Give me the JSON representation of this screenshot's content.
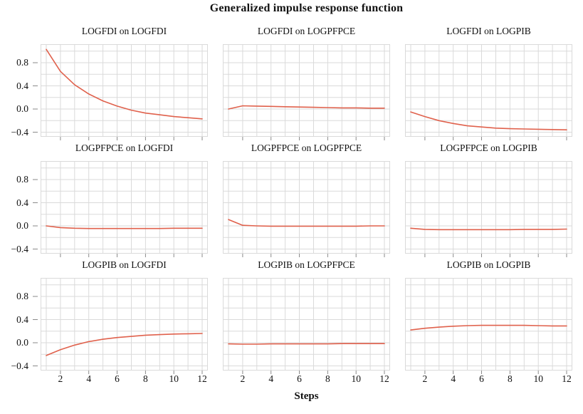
{
  "title": "Generalized impulse response function",
  "xlabel": "Steps",
  "y_tick_labels": [
    "0.8",
    "0.4",
    "0.0",
    "−0.4"
  ],
  "y_tick_values": [
    0.8,
    0.4,
    0.0,
    -0.4
  ],
  "x_tick_labels": [
    "2",
    "4",
    "6",
    "8",
    "10",
    "12"
  ],
  "x_tick_values": [
    2,
    4,
    6,
    8,
    10,
    12
  ],
  "colors": {
    "line": "#e0614c",
    "grid": "#dadada",
    "tick": "#8a8a8a",
    "text": "#111111",
    "background": "#ffffff"
  },
  "chart_data": {
    "type": "line",
    "layout": "3x3 small multiples, shared axes",
    "title": "Generalized impulse response function",
    "xlabel": "Steps",
    "x": [
      1,
      2,
      3,
      4,
      5,
      6,
      7,
      8,
      9,
      10,
      11,
      12
    ],
    "x_range": [
      0.6,
      12.4
    ],
    "y_range": [
      -0.48,
      1.12
    ],
    "grid": "on",
    "gridline_y_step": 0.2,
    "gridline_x_step": 1,
    "panels": [
      {
        "title": "LOGFDI on LOGFDI",
        "values": [
          1.03,
          0.65,
          0.42,
          0.26,
          0.14,
          0.05,
          -0.02,
          -0.07,
          -0.1,
          -0.13,
          -0.15,
          -0.17
        ]
      },
      {
        "title": "LOGFDI on LOGPFPCE",
        "values": [
          0.0,
          0.055,
          0.05,
          0.045,
          0.04,
          0.035,
          0.03,
          0.025,
          0.02,
          0.02,
          0.015,
          0.015
        ]
      },
      {
        "title": "LOGFDI on LOGPIB",
        "values": [
          -0.05,
          -0.13,
          -0.2,
          -0.25,
          -0.29,
          -0.31,
          -0.33,
          -0.34,
          -0.345,
          -0.35,
          -0.355,
          -0.36
        ]
      },
      {
        "title": "LOGPFPCE on LOGFDI",
        "values": [
          0.0,
          -0.03,
          -0.04,
          -0.045,
          -0.045,
          -0.045,
          -0.045,
          -0.045,
          -0.045,
          -0.04,
          -0.04,
          -0.04
        ]
      },
      {
        "title": "LOGPFPCE on LOGPFPCE",
        "values": [
          0.11,
          0.01,
          0.0,
          -0.005,
          -0.005,
          -0.005,
          -0.005,
          -0.005,
          -0.005,
          -0.005,
          0.0,
          0.0
        ]
      },
      {
        "title": "LOGPFPCE on LOGPIB",
        "values": [
          -0.04,
          -0.06,
          -0.065,
          -0.065,
          -0.065,
          -0.065,
          -0.065,
          -0.065,
          -0.06,
          -0.06,
          -0.06,
          -0.055
        ]
      },
      {
        "title": "LOGPIB on LOGFDI",
        "values": [
          -0.22,
          -0.12,
          -0.04,
          0.02,
          0.06,
          0.09,
          0.11,
          0.13,
          0.14,
          0.15,
          0.155,
          0.16
        ]
      },
      {
        "title": "LOGPIB on LOGPFPCE",
        "values": [
          -0.02,
          -0.025,
          -0.025,
          -0.02,
          -0.02,
          -0.02,
          -0.02,
          -0.02,
          -0.015,
          -0.015,
          -0.015,
          -0.015
        ]
      },
      {
        "title": "LOGPIB on LOGPIB",
        "values": [
          0.22,
          0.25,
          0.27,
          0.285,
          0.295,
          0.3,
          0.3,
          0.3,
          0.3,
          0.295,
          0.29,
          0.29
        ]
      }
    ]
  }
}
